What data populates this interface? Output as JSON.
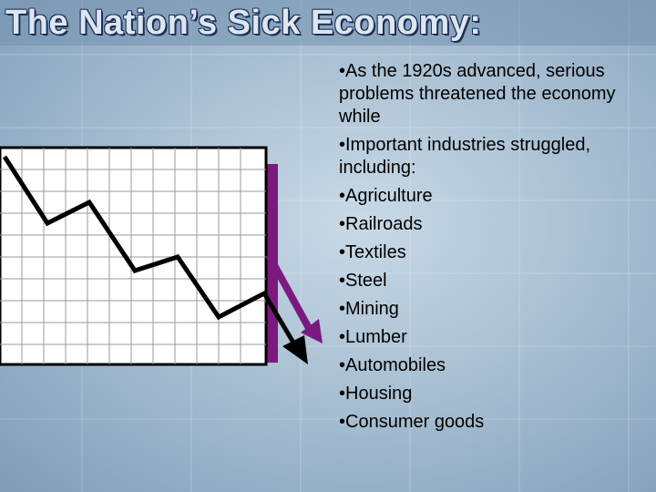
{
  "header": {
    "title": "The Nation’s Sick Economy:"
  },
  "bullets": [
    "•As the 1920s advanced, serious problems threatened the economy while",
    "•Important industries struggled, including:",
    "•Agriculture",
    "•Railroads",
    "•Textiles",
    "•Steel",
    "•Mining",
    "•Lumber",
    "•Automobiles",
    "•Housing",
    "•Consumer goods"
  ]
}
